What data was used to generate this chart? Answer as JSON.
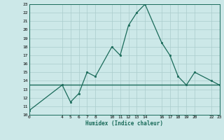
{
  "xlabel": "Humidex (Indice chaleur)",
  "x_values": [
    0,
    4,
    5,
    6,
    7,
    8,
    10,
    11,
    12,
    13,
    14,
    16,
    17,
    18,
    19,
    20,
    22,
    23
  ],
  "y_values": [
    10.5,
    13.5,
    11.5,
    12.5,
    15.0,
    14.5,
    18.0,
    17.0,
    20.5,
    22.0,
    23.0,
    18.5,
    17.0,
    14.5,
    13.5,
    15.0,
    14.0,
    13.5
  ],
  "xlim": [
    0,
    23
  ],
  "ylim": [
    10,
    23
  ],
  "xticks": [
    0,
    4,
    5,
    6,
    7,
    8,
    10,
    11,
    12,
    13,
    14,
    16,
    17,
    18,
    19,
    20,
    22,
    23
  ],
  "yticks": [
    10,
    11,
    12,
    13,
    14,
    15,
    16,
    17,
    18,
    19,
    20,
    21,
    22,
    23
  ],
  "line_color": "#1a6b5a",
  "marker_color": "#1a6b5a",
  "bg_color": "#cce8e8",
  "grid_color": "#aacccc",
  "hline_y": 13.5,
  "hline_color": "#1a6b5a"
}
